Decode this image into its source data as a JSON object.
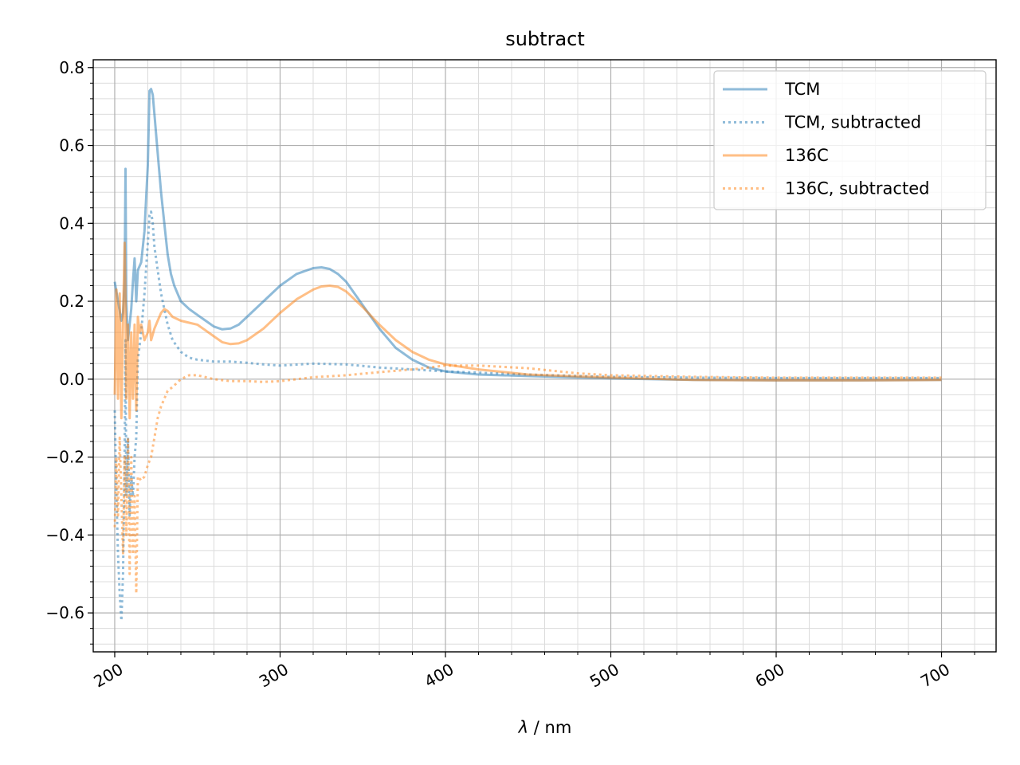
{
  "chart_data": {
    "type": "line",
    "title": "subtract",
    "xlabel_symbol": "λ",
    "xlabel_unit": " / nm",
    "ylabel": "",
    "xlim": [
      187,
      733
    ],
    "ylim": [
      -0.7,
      0.82
    ],
    "x_ticks": [
      200,
      300,
      400,
      500,
      600,
      700
    ],
    "x_tick_labels": [
      "200",
      "300",
      "400",
      "500",
      "600",
      "700"
    ],
    "y_ticks": [
      -0.6,
      -0.4,
      -0.2,
      0.0,
      0.2,
      0.4,
      0.6,
      0.8
    ],
    "y_tick_labels": [
      "−0.6",
      "−0.4",
      "−0.2",
      "0.0",
      "0.2",
      "0.4",
      "0.6",
      "0.8"
    ],
    "x_tick_rotation_deg": 30,
    "grid": true,
    "minor_grid": true,
    "legend_position": "top-right",
    "colors": {
      "series_blue": "#1f77b4",
      "series_orange": "#ff7f0e"
    },
    "series": [
      {
        "name": "TCM",
        "color": "#1f77b4",
        "linestyle": "solid",
        "x": [
          200,
          202,
          204,
          205,
          206,
          206.5,
          207,
          208,
          210,
          211,
          212,
          213,
          214,
          216,
          218,
          220,
          221,
          222,
          223,
          224,
          226,
          228,
          230,
          232,
          234,
          236,
          238,
          240,
          245,
          250,
          255,
          260,
          265,
          270,
          275,
          280,
          290,
          300,
          310,
          320,
          325,
          330,
          335,
          340,
          350,
          360,
          370,
          380,
          390,
          400,
          420,
          450,
          500,
          550,
          600,
          650,
          700
        ],
        "y": [
          0.25,
          0.2,
          0.15,
          0.17,
          0.25,
          0.54,
          0.2,
          0.1,
          0.18,
          0.25,
          0.31,
          0.2,
          0.28,
          0.3,
          0.38,
          0.55,
          0.74,
          0.745,
          0.73,
          0.68,
          0.58,
          0.48,
          0.4,
          0.32,
          0.27,
          0.24,
          0.22,
          0.2,
          0.18,
          0.165,
          0.15,
          0.135,
          0.128,
          0.13,
          0.14,
          0.16,
          0.2,
          0.24,
          0.27,
          0.285,
          0.287,
          0.283,
          0.27,
          0.25,
          0.19,
          0.13,
          0.08,
          0.05,
          0.03,
          0.02,
          0.012,
          0.008,
          0.002,
          -0.002,
          -0.003,
          -0.003,
          -0.002
        ]
      },
      {
        "name": "TCM, subtracted",
        "color": "#1f77b4",
        "linestyle": "dotted",
        "x": [
          200,
          201,
          202,
          203,
          204,
          205,
          206,
          206.5,
          207,
          208,
          209,
          210,
          211,
          212,
          213,
          214,
          216,
          218,
          220,
          221,
          222,
          223,
          224,
          226,
          228,
          230,
          232,
          235,
          240,
          245,
          250,
          260,
          270,
          280,
          290,
          300,
          320,
          340,
          360,
          380,
          400,
          450,
          500,
          550,
          600,
          650,
          700
        ],
        "y": [
          -0.08,
          -0.3,
          -0.45,
          -0.55,
          -0.62,
          -0.5,
          -0.2,
          0.1,
          -0.3,
          -0.15,
          -0.35,
          -0.25,
          -0.3,
          -0.2,
          -0.15,
          0.05,
          0.12,
          0.22,
          0.35,
          0.42,
          0.43,
          0.4,
          0.34,
          0.28,
          0.22,
          0.18,
          0.14,
          0.1,
          0.07,
          0.055,
          0.05,
          0.045,
          0.045,
          0.042,
          0.038,
          0.035,
          0.04,
          0.038,
          0.03,
          0.025,
          0.02,
          0.012,
          0.006,
          0.004,
          0.003,
          0.003,
          0.003
        ]
      },
      {
        "name": "136C",
        "color": "#ff7f0e",
        "linestyle": "solid",
        "x": [
          200,
          201,
          202,
          203,
          204,
          205,
          206,
          206.5,
          207,
          208,
          209,
          210,
          211,
          212,
          213,
          214,
          215,
          216,
          218,
          220,
          221,
          222,
          224,
          226,
          228,
          230,
          232,
          235,
          240,
          245,
          250,
          255,
          260,
          265,
          270,
          275,
          280,
          290,
          300,
          310,
          320,
          325,
          330,
          335,
          340,
          350,
          360,
          370,
          380,
          390,
          400,
          420,
          450,
          500,
          550,
          600,
          650,
          700
        ],
        "y": [
          -0.04,
          0.23,
          -0.05,
          0.22,
          -0.1,
          0.15,
          0.35,
          0.2,
          -0.05,
          0.14,
          -0.1,
          0.12,
          -0.05,
          0.14,
          -0.08,
          0.16,
          0.12,
          0.14,
          0.1,
          0.12,
          0.15,
          0.1,
          0.13,
          0.15,
          0.17,
          0.18,
          0.175,
          0.16,
          0.15,
          0.145,
          0.14,
          0.125,
          0.11,
          0.095,
          0.09,
          0.092,
          0.1,
          0.13,
          0.17,
          0.205,
          0.23,
          0.238,
          0.24,
          0.237,
          0.225,
          0.185,
          0.14,
          0.1,
          0.07,
          0.05,
          0.038,
          0.025,
          0.012,
          0.004,
          -0.002,
          -0.003,
          -0.003,
          -0.002
        ]
      },
      {
        "name": "136C, subtracted",
        "color": "#ff7f0e",
        "linestyle": "dotted",
        "x": [
          200,
          201,
          202,
          203,
          204,
          205,
          206,
          207,
          208,
          209,
          210,
          211,
          212,
          213,
          214,
          216,
          218,
          220,
          222,
          224,
          226,
          228,
          230,
          232,
          235,
          240,
          245,
          250,
          260,
          270,
          280,
          290,
          300,
          320,
          340,
          360,
          380,
          400,
          420,
          450,
          480,
          500,
          550,
          600,
          650,
          700
        ],
        "y": [
          -0.38,
          -0.2,
          -0.35,
          -0.15,
          -0.3,
          -0.45,
          -0.2,
          -0.4,
          -0.15,
          -0.5,
          -0.2,
          -0.45,
          -0.3,
          -0.55,
          -0.25,
          -0.26,
          -0.25,
          -0.22,
          -0.2,
          -0.15,
          -0.1,
          -0.07,
          -0.05,
          -0.03,
          -0.02,
          0.0,
          0.01,
          0.01,
          0.0,
          -0.005,
          -0.005,
          -0.007,
          -0.005,
          0.005,
          0.01,
          0.018,
          0.025,
          0.035,
          0.035,
          0.028,
          0.015,
          0.01,
          0.006,
          0.004,
          0.004,
          0.004
        ]
      }
    ]
  }
}
